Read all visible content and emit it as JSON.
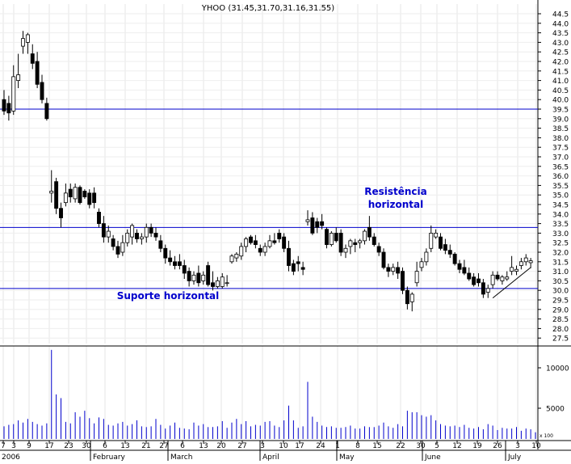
{
  "chart_data": {
    "type": "candlestick",
    "title": "YHOO (31.45,31.70,31.16,31.55)",
    "year_label": "2006",
    "price_axis": {
      "min": 27.5,
      "max": 44.5,
      "step": 0.5,
      "labels": [
        "44.5",
        "44.0",
        "43.5",
        "43.0",
        "42.5",
        "42.0",
        "41.5",
        "41.0",
        "40.5",
        "40.0",
        "39.5",
        "39.0",
        "38.5",
        "38.0",
        "37.5",
        "37.0",
        "36.5",
        "36.0",
        "35.5",
        "35.0",
        "34.5",
        "34.0",
        "33.5",
        "33.0",
        "32.5",
        "32.0",
        "31.5",
        "31.0",
        "30.5",
        "30.0",
        "29.5",
        "29.0",
        "28.5",
        "28.0",
        "27.5"
      ]
    },
    "volume_axis": {
      "labels": [
        "10000",
        "5000"
      ],
      "unit_label": "x 100"
    },
    "x_axis": {
      "day_ticks": [
        "7",
        "3",
        "9",
        "17",
        "23",
        "30",
        "6",
        "13",
        "21",
        "27",
        "6",
        "13",
        "20",
        "27",
        "3",
        "10",
        "17",
        "24",
        "1",
        "8",
        "15",
        "22",
        "30",
        "5",
        "12",
        "19",
        "26",
        "3",
        "10"
      ],
      "month_labels": [
        "February",
        "March",
        "April",
        "May",
        "June",
        "July"
      ]
    },
    "horizontal_lines": [
      {
        "price": 39.5,
        "color": "#0000cc"
      },
      {
        "price": 33.3,
        "color": "#0000cc"
      },
      {
        "price": 30.1,
        "color": "#0000cc"
      }
    ],
    "annotations": [
      {
        "text": "Resistência",
        "color": "#0000cc"
      },
      {
        "text": "horizontal",
        "color": "#0000cc"
      },
      {
        "text": "Suporte horizontal",
        "color": "#0000cc"
      }
    ],
    "colors": {
      "line": "#0000cc",
      "candle": "#000000",
      "grid": "#cccccc"
    },
    "ohlc": [
      {
        "o": 40.0,
        "h": 40.5,
        "l": 39.2,
        "c": 39.4
      },
      {
        "o": 39.8,
        "h": 40.2,
        "l": 38.9,
        "c": 39.3
      },
      {
        "o": 39.4,
        "h": 41.8,
        "l": 39.2,
        "c": 41.2
      },
      {
        "o": 41.0,
        "h": 42.4,
        "l": 40.6,
        "c": 41.3
      },
      {
        "o": 42.8,
        "h": 43.6,
        "l": 42.4,
        "c": 43.2
      },
      {
        "o": 43.0,
        "h": 43.5,
        "l": 42.4,
        "c": 43.4
      },
      {
        "o": 42.4,
        "h": 42.9,
        "l": 41.6,
        "c": 41.9
      },
      {
        "o": 42.0,
        "h": 42.5,
        "l": 40.6,
        "c": 40.8
      },
      {
        "o": 40.9,
        "h": 41.3,
        "l": 39.8,
        "c": 40.0
      },
      {
        "o": 39.8,
        "h": 40.1,
        "l": 38.9,
        "c": 39.0
      },
      {
        "o": 35.1,
        "h": 36.3,
        "l": 34.6,
        "c": 35.2
      },
      {
        "o": 35.7,
        "h": 35.9,
        "l": 34.0,
        "c": 34.3
      },
      {
        "o": 34.3,
        "h": 34.6,
        "l": 33.3,
        "c": 33.8
      },
      {
        "o": 34.6,
        "h": 35.6,
        "l": 34.4,
        "c": 35.1
      },
      {
        "o": 35.3,
        "h": 35.6,
        "l": 34.6,
        "c": 34.9
      },
      {
        "o": 34.8,
        "h": 35.6,
        "l": 34.6,
        "c": 35.4
      },
      {
        "o": 35.4,
        "h": 35.5,
        "l": 34.5,
        "c": 34.6
      },
      {
        "o": 35.2,
        "h": 35.3,
        "l": 34.8,
        "c": 34.9
      },
      {
        "o": 35.1,
        "h": 35.3,
        "l": 34.3,
        "c": 34.5
      },
      {
        "o": 35.1,
        "h": 35.4,
        "l": 34.3,
        "c": 34.6
      },
      {
        "o": 34.1,
        "h": 34.3,
        "l": 33.3,
        "c": 33.5
      },
      {
        "o": 33.5,
        "h": 33.9,
        "l": 32.5,
        "c": 32.8
      },
      {
        "o": 32.8,
        "h": 33.4,
        "l": 32.5,
        "c": 33.1
      },
      {
        "o": 32.7,
        "h": 32.9,
        "l": 32.1,
        "c": 32.3
      },
      {
        "o": 32.3,
        "h": 32.6,
        "l": 31.7,
        "c": 31.9
      },
      {
        "o": 32.0,
        "h": 32.9,
        "l": 31.8,
        "c": 32.5
      },
      {
        "o": 32.5,
        "h": 33.2,
        "l": 32.3,
        "c": 33.0
      },
      {
        "o": 32.8,
        "h": 33.5,
        "l": 32.4,
        "c": 33.4
      },
      {
        "o": 33.0,
        "h": 33.2,
        "l": 32.5,
        "c": 32.7
      },
      {
        "o": 32.7,
        "h": 33.0,
        "l": 32.4,
        "c": 32.8
      },
      {
        "o": 32.8,
        "h": 33.5,
        "l": 32.5,
        "c": 33.3
      },
      {
        "o": 33.3,
        "h": 33.5,
        "l": 32.8,
        "c": 33.0
      },
      {
        "o": 33.0,
        "h": 33.3,
        "l": 32.6,
        "c": 32.8
      },
      {
        "o": 32.6,
        "h": 32.9,
        "l": 32.0,
        "c": 32.2
      },
      {
        "o": 32.2,
        "h": 32.4,
        "l": 31.4,
        "c": 31.7
      },
      {
        "o": 31.7,
        "h": 32.1,
        "l": 31.3,
        "c": 31.5
      },
      {
        "o": 31.5,
        "h": 31.8,
        "l": 31.1,
        "c": 31.3
      },
      {
        "o": 31.5,
        "h": 31.9,
        "l": 31.1,
        "c": 31.3
      },
      {
        "o": 31.3,
        "h": 31.6,
        "l": 30.6,
        "c": 30.9
      },
      {
        "o": 31.0,
        "h": 31.2,
        "l": 30.2,
        "c": 30.5
      },
      {
        "o": 30.5,
        "h": 31.0,
        "l": 30.3,
        "c": 30.8
      },
      {
        "o": 30.9,
        "h": 31.3,
        "l": 30.2,
        "c": 30.4
      },
      {
        "o": 30.5,
        "h": 31.0,
        "l": 30.3,
        "c": 30.8
      },
      {
        "o": 31.3,
        "h": 31.5,
        "l": 30.2,
        "c": 30.3
      },
      {
        "o": 30.4,
        "h": 31.0,
        "l": 30.0,
        "c": 30.2
      },
      {
        "o": 30.2,
        "h": 30.7,
        "l": 30.1,
        "c": 30.5
      },
      {
        "o": 30.2,
        "h": 30.9,
        "l": 30.1,
        "c": 30.7
      },
      {
        "o": 30.4,
        "h": 30.8,
        "l": 30.2,
        "c": 30.4
      },
      {
        "o": 31.5,
        "h": 31.9,
        "l": 31.4,
        "c": 31.8
      },
      {
        "o": 31.7,
        "h": 32.0,
        "l": 31.5,
        "c": 31.9
      },
      {
        "o": 31.8,
        "h": 32.5,
        "l": 31.6,
        "c": 32.3
      },
      {
        "o": 32.3,
        "h": 32.8,
        "l": 32.0,
        "c": 32.7
      },
      {
        "o": 32.8,
        "h": 32.9,
        "l": 32.4,
        "c": 32.5
      },
      {
        "o": 32.6,
        "h": 32.9,
        "l": 32.2,
        "c": 32.4
      },
      {
        "o": 32.2,
        "h": 32.4,
        "l": 31.8,
        "c": 32.0
      },
      {
        "o": 32.0,
        "h": 32.5,
        "l": 31.8,
        "c": 32.3
      },
      {
        "o": 32.3,
        "h": 32.9,
        "l": 32.2,
        "c": 32.6
      },
      {
        "o": 32.6,
        "h": 33.0,
        "l": 32.4,
        "c": 32.5
      },
      {
        "o": 33.0,
        "h": 33.2,
        "l": 32.5,
        "c": 32.7
      },
      {
        "o": 32.8,
        "h": 33.0,
        "l": 32.0,
        "c": 32.2
      },
      {
        "o": 32.2,
        "h": 32.6,
        "l": 31.0,
        "c": 31.3
      },
      {
        "o": 31.4,
        "h": 31.6,
        "l": 30.8,
        "c": 31.0
      },
      {
        "o": 31.5,
        "h": 31.8,
        "l": 31.0,
        "c": 31.4
      },
      {
        "o": 31.2,
        "h": 31.5,
        "l": 30.8,
        "c": 31.1
      },
      {
        "o": 33.6,
        "h": 34.2,
        "l": 33.4,
        "c": 33.7
      },
      {
        "o": 33.8,
        "h": 34.1,
        "l": 32.9,
        "c": 33.0
      },
      {
        "o": 33.6,
        "h": 33.8,
        "l": 33.0,
        "c": 33.3
      },
      {
        "o": 33.6,
        "h": 34.0,
        "l": 33.2,
        "c": 33.4
      },
      {
        "o": 33.2,
        "h": 33.3,
        "l": 32.2,
        "c": 32.4
      },
      {
        "o": 32.4,
        "h": 33.1,
        "l": 32.3,
        "c": 33.0
      },
      {
        "o": 33.0,
        "h": 33.3,
        "l": 32.5,
        "c": 32.6
      },
      {
        "o": 33.0,
        "h": 33.2,
        "l": 31.8,
        "c": 32.0
      },
      {
        "o": 32.0,
        "h": 32.4,
        "l": 31.7,
        "c": 32.2
      },
      {
        "o": 32.3,
        "h": 32.7,
        "l": 31.9,
        "c": 32.6
      },
      {
        "o": 32.5,
        "h": 32.7,
        "l": 32.0,
        "c": 32.4
      },
      {
        "o": 32.5,
        "h": 32.7,
        "l": 32.2,
        "c": 32.6
      },
      {
        "o": 32.6,
        "h": 33.2,
        "l": 32.4,
        "c": 33.1
      },
      {
        "o": 33.3,
        "h": 33.9,
        "l": 32.6,
        "c": 32.8
      },
      {
        "o": 32.8,
        "h": 33.0,
        "l": 32.3,
        "c": 32.4
      },
      {
        "o": 32.3,
        "h": 32.5,
        "l": 31.8,
        "c": 32.0
      },
      {
        "o": 32.0,
        "h": 32.2,
        "l": 31.1,
        "c": 31.2
      },
      {
        "o": 31.2,
        "h": 31.4,
        "l": 30.7,
        "c": 31.0
      },
      {
        "o": 31.0,
        "h": 31.4,
        "l": 30.8,
        "c": 31.2
      },
      {
        "o": 31.2,
        "h": 31.5,
        "l": 30.6,
        "c": 30.9
      },
      {
        "o": 31.0,
        "h": 31.2,
        "l": 29.8,
        "c": 30.0
      },
      {
        "o": 30.0,
        "h": 30.2,
        "l": 29.0,
        "c": 29.3
      },
      {
        "o": 29.4,
        "h": 29.9,
        "l": 28.9,
        "c": 29.8
      },
      {
        "o": 30.4,
        "h": 31.5,
        "l": 30.2,
        "c": 31.0
      },
      {
        "o": 31.2,
        "h": 31.7,
        "l": 31.0,
        "c": 31.5
      },
      {
        "o": 31.5,
        "h": 32.2,
        "l": 31.3,
        "c": 32.0
      },
      {
        "o": 32.2,
        "h": 33.4,
        "l": 32.0,
        "c": 33.0
      },
      {
        "o": 32.8,
        "h": 33.2,
        "l": 32.7,
        "c": 33.0
      },
      {
        "o": 32.8,
        "h": 33.0,
        "l": 32.1,
        "c": 32.2
      },
      {
        "o": 32.4,
        "h": 32.7,
        "l": 31.9,
        "c": 32.1
      },
      {
        "o": 32.1,
        "h": 32.4,
        "l": 31.7,
        "c": 31.9
      },
      {
        "o": 31.9,
        "h": 32.0,
        "l": 31.3,
        "c": 31.4
      },
      {
        "o": 31.4,
        "h": 31.6,
        "l": 30.9,
        "c": 31.1
      },
      {
        "o": 31.2,
        "h": 31.6,
        "l": 30.8,
        "c": 30.9
      },
      {
        "o": 30.9,
        "h": 31.2,
        "l": 30.5,
        "c": 30.6
      },
      {
        "o": 30.7,
        "h": 30.9,
        "l": 30.2,
        "c": 30.3
      },
      {
        "o": 30.6,
        "h": 30.9,
        "l": 30.2,
        "c": 30.4
      },
      {
        "o": 30.4,
        "h": 30.6,
        "l": 29.6,
        "c": 29.8
      },
      {
        "o": 29.9,
        "h": 30.3,
        "l": 29.6,
        "c": 30.1
      },
      {
        "o": 30.3,
        "h": 31.0,
        "l": 30.1,
        "c": 30.8
      },
      {
        "o": 30.8,
        "h": 31.0,
        "l": 30.5,
        "c": 30.6
      },
      {
        "o": 30.5,
        "h": 30.8,
        "l": 30.3,
        "c": 30.7
      },
      {
        "o": 30.6,
        "h": 31.0,
        "l": 30.5,
        "c": 30.7
      },
      {
        "o": 31.0,
        "h": 31.8,
        "l": 30.8,
        "c": 31.2
      },
      {
        "o": 31.0,
        "h": 31.3,
        "l": 30.8,
        "c": 31.1
      },
      {
        "o": 31.3,
        "h": 31.7,
        "l": 31.1,
        "c": 31.5
      },
      {
        "o": 31.5,
        "h": 31.9,
        "l": 31.3,
        "c": 31.7
      },
      {
        "o": 31.45,
        "h": 31.7,
        "l": 31.16,
        "c": 31.55
      }
    ],
    "volume": [
      1700,
      1900,
      2000,
      2500,
      2200,
      2700,
      2300,
      2000,
      1800,
      2100,
      12000,
      6000,
      5500,
      2300,
      2100,
      3600,
      3000,
      3800,
      2800,
      2100,
      2900,
      2700,
      1900,
      1800,
      2100,
      2300,
      1800,
      2000,
      2500,
      1700,
      1600,
      1700,
      2700,
      1900,
      1400,
      1800,
      2200,
      1500,
      1400,
      1300,
      2200,
      1800,
      2000,
      1600,
      1600,
      1700,
      2400,
      1500,
      2200,
      2700,
      2000,
      2400,
      1700,
      1900,
      1800,
      2300,
      2400,
      1800,
      1600,
      2500,
      4500,
      2500,
      1500,
      1700,
      7700,
      3000,
      2300,
      1800,
      1600,
      1700,
      1500,
      1500,
      1600,
      1800,
      1400,
      1400,
      1700,
      1600,
      1600,
      1800,
      2200,
      1700,
      1500,
      2000,
      1700,
      3800,
      3600,
      3600,
      3200,
      3000,
      3200,
      2500,
      2000,
      1800,
      1700,
      1800,
      1600,
      1900,
      1500,
      1400,
      1600,
      1300,
      2000,
      1800,
      1200,
      1500,
      1400,
      1400,
      1600,
      1100,
      1400,
      1300,
      900
    ]
  }
}
